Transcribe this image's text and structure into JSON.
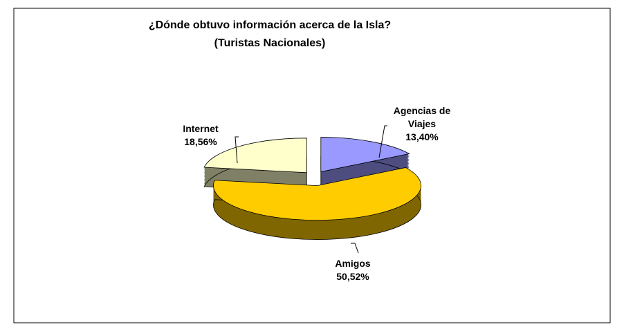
{
  "chart_data": {
    "type": "pie",
    "title": "¿Dónde obtuvo información acerca de la Isla?",
    "subtitle": "(Turistas Nacionales)",
    "categories": [
      "Agencias de Viajes",
      "Amigos",
      "Internet"
    ],
    "values": [
      13.4,
      50.52,
      18.56
    ],
    "value_labels": [
      "13,40%",
      "50,52%",
      "18,56%"
    ],
    "colors": [
      "#9999ff",
      "#ffcc00",
      "#ffffcc"
    ],
    "side_colors": [
      "#4d4d80",
      "#806600",
      "#808066"
    ]
  }
}
